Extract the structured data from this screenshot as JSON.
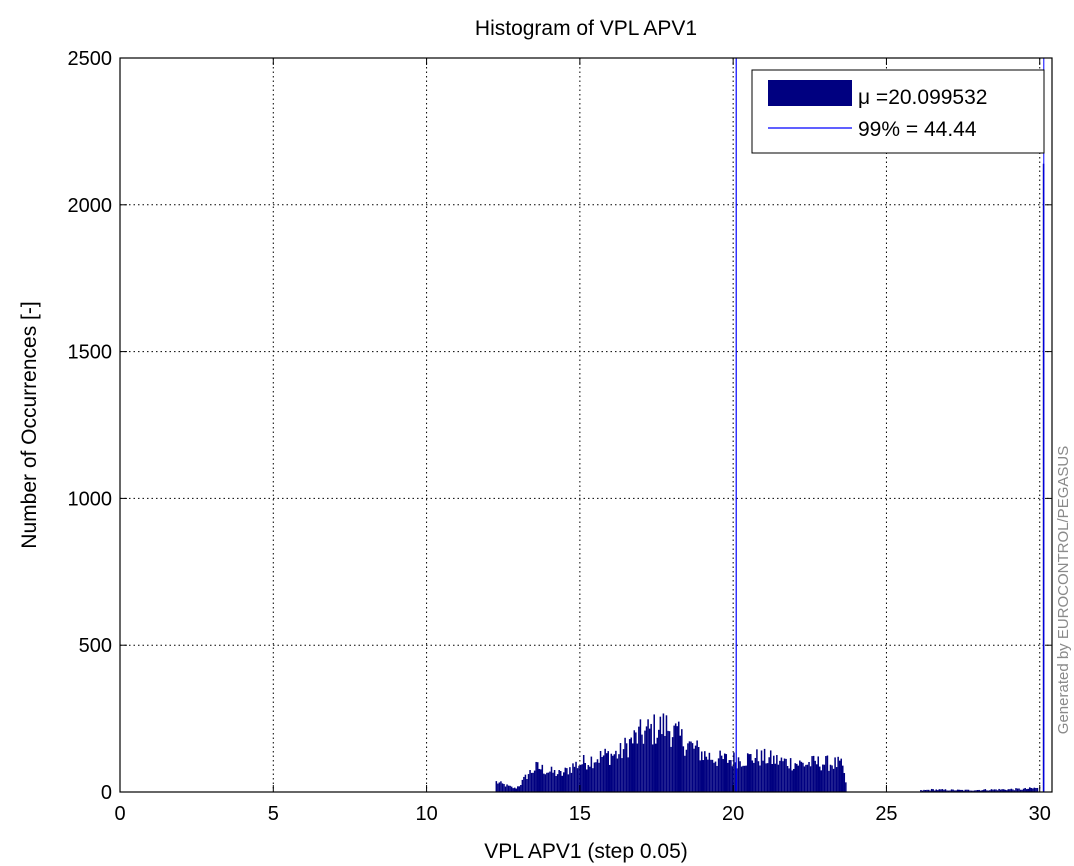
{
  "chart_data": {
    "type": "bar",
    "title": "Histogram of VPL APV1",
    "xlabel": "VPL APV1 (step 0.05)",
    "ylabel": "Number of Occurrences [-]",
    "xlim": [
      0,
      30.4
    ],
    "ylim": [
      0,
      2500
    ],
    "xticks": [
      0,
      5,
      10,
      15,
      20,
      25,
      30
    ],
    "xtick_labels": [
      "0",
      "5",
      "10",
      "15",
      "20",
      "25",
      "30"
    ],
    "yticks": [
      0,
      500,
      1000,
      1500,
      2000,
      2500
    ],
    "ytick_labels": [
      "0",
      "500",
      "1000",
      "1500",
      "2000",
      "2500"
    ],
    "grid": true,
    "legend_position": "top-right",
    "bin_width": 0.05,
    "series": [
      {
        "name": "μ =20.099532",
        "color": "#000080",
        "profile": [
          [
            12.25,
            35
          ],
          [
            12.6,
            22
          ],
          [
            12.9,
            12
          ],
          [
            13.05,
            25
          ],
          [
            13.3,
            60
          ],
          [
            13.6,
            85
          ],
          [
            14.0,
            70
          ],
          [
            14.4,
            60
          ],
          [
            14.8,
            90
          ],
          [
            15.1,
            100
          ],
          [
            15.5,
            115
          ],
          [
            15.9,
            125
          ],
          [
            16.3,
            130
          ],
          [
            16.6,
            165
          ],
          [
            16.9,
            190
          ],
          [
            17.2,
            205
          ],
          [
            17.5,
            215
          ],
          [
            17.8,
            225
          ],
          [
            18.0,
            210
          ],
          [
            18.3,
            180
          ],
          [
            18.7,
            150
          ],
          [
            19.1,
            125
          ],
          [
            19.5,
            112
          ],
          [
            19.9,
            110
          ],
          [
            20.3,
            112
          ],
          [
            20.7,
            118
          ],
          [
            21.1,
            115
          ],
          [
            21.5,
            105
          ],
          [
            21.9,
            100
          ],
          [
            22.3,
            95
          ],
          [
            22.7,
            100
          ],
          [
            23.1,
            98
          ],
          [
            23.5,
            95
          ],
          [
            23.65,
            60
          ],
          [
            23.7,
            0
          ]
        ],
        "tail": [
          [
            26.1,
            5
          ],
          [
            26.5,
            8
          ],
          [
            27.5,
            6
          ],
          [
            28.5,
            8
          ],
          [
            29.5,
            10
          ],
          [
            29.95,
            14
          ]
        ],
        "spike": [
          30.1,
          2140
        ]
      },
      {
        "name": "99% = 44.44",
        "color": "#0000ff",
        "x": 20.099532
      }
    ]
  },
  "watermark": "Generated by EUROCONTROL/PEGASUS"
}
